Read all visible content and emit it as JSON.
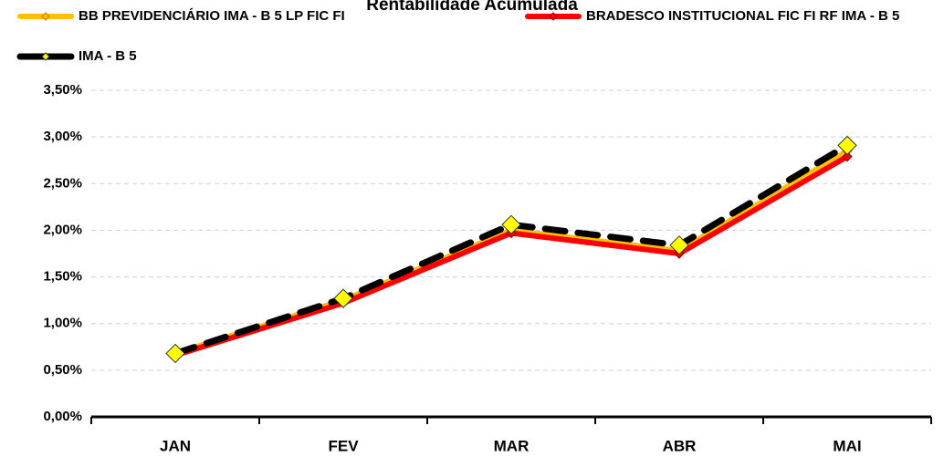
{
  "chart_data": {
    "type": "line",
    "title": "Rentabilidade Acumulada",
    "categories": [
      "JAN",
      "FEV",
      "MAR",
      "ABR",
      "MAI"
    ],
    "series": [
      {
        "name": "BB PREVIDENCIÁRIO IMA - B 5 LP FIC FI",
        "color": "#FFC000",
        "values": [
          0.68,
          1.25,
          2.0,
          1.78,
          2.85
        ]
      },
      {
        "name": "BRADESCO INSTITUCIONAL FIC FI RF IMA - B 5",
        "color": "#FF0000",
        "values": [
          0.66,
          1.22,
          1.97,
          1.75,
          2.79
        ]
      },
      {
        "name": "IMA - B 5",
        "color": "#000000",
        "values": [
          0.68,
          1.27,
          2.06,
          1.84,
          2.91
        ]
      }
    ],
    "ylim": [
      0,
      3.5
    ],
    "yticks": [
      {
        "value": 0,
        "label": "0,00%"
      },
      {
        "value": 0.5,
        "label": "0,50%"
      },
      {
        "value": 1,
        "label": "1,00%"
      },
      {
        "value": 1.5,
        "label": "1,50%"
      },
      {
        "value": 2,
        "label": "2,00%"
      },
      {
        "value": 2.5,
        "label": "2,50%"
      },
      {
        "value": 3,
        "label": "3,00%"
      },
      {
        "value": 3.5,
        "label": "3,50%"
      }
    ],
    "grid": true,
    "legend": "top"
  }
}
